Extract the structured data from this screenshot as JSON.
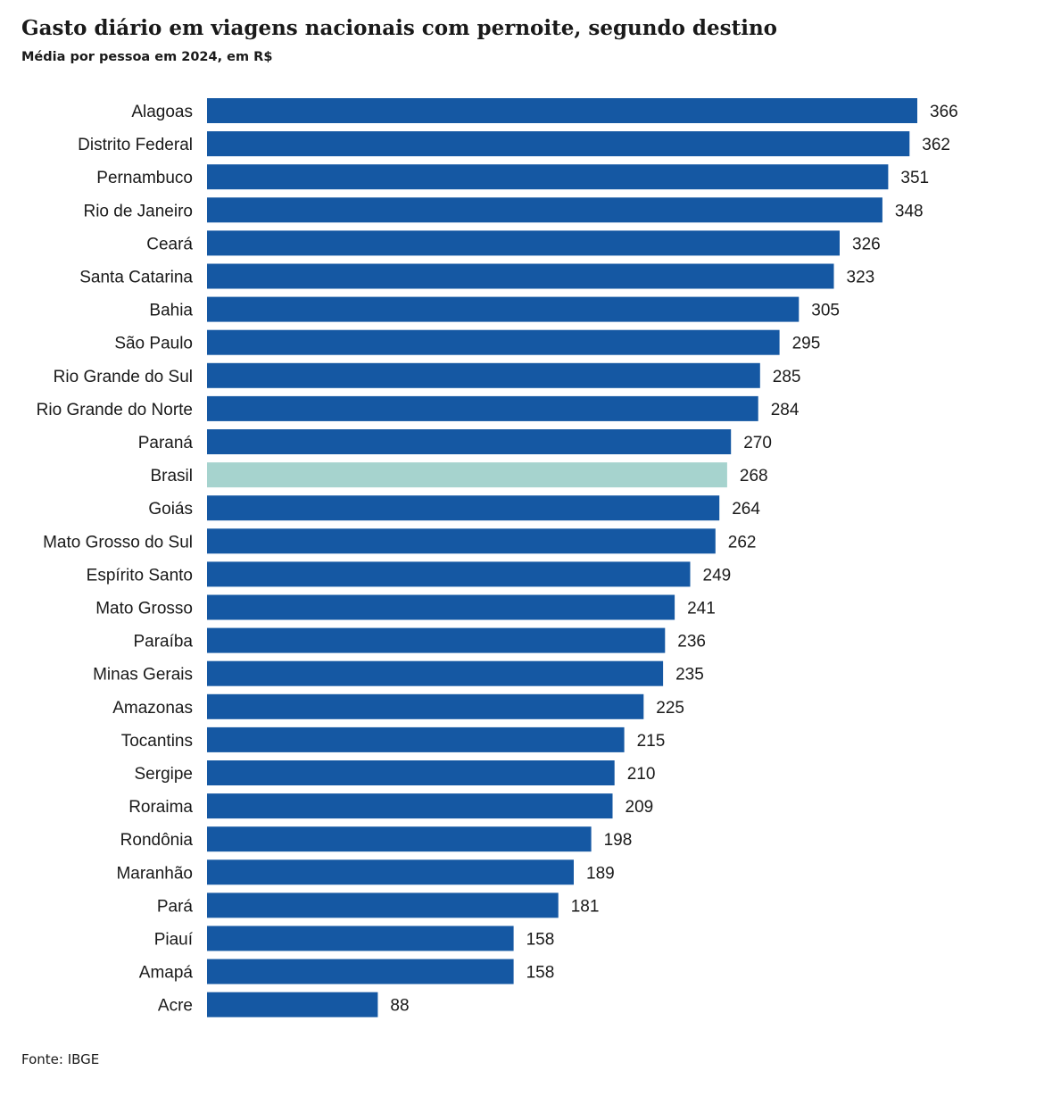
{
  "header": {
    "title": "Gasto diário em viagens nacionais com pernoite, segundo destino",
    "subtitle": "Média por pessoa em 2024, em R$"
  },
  "footer": {
    "source": "Fonte: IBGE"
  },
  "colors": {
    "bar": "#1558a3",
    "highlight": "#a6d3ce",
    "text": "#1a1a1a"
  },
  "chart_data": {
    "type": "bar",
    "orientation": "horizontal",
    "highlight_category": "Brasil",
    "grid": false,
    "legend": "none",
    "xlim": [
      0,
      366
    ],
    "categories": [
      "Alagoas",
      "Distrito Federal",
      "Pernambuco",
      "Rio de Janeiro",
      "Ceará",
      "Santa Catarina",
      "Bahia",
      "São Paulo",
      "Rio Grande do Sul",
      "Rio Grande do Norte",
      "Paraná",
      "Brasil",
      "Goiás",
      "Mato Grosso do Sul",
      "Espírito Santo",
      "Mato Grosso",
      "Paraíba",
      "Minas Gerais",
      "Amazonas",
      "Tocantins",
      "Sergipe",
      "Roraima",
      "Rondônia",
      "Maranhão",
      "Pará",
      "Piauí",
      "Amapá",
      "Acre"
    ],
    "values": [
      366,
      362,
      351,
      348,
      326,
      323,
      305,
      295,
      285,
      284,
      270,
      268,
      264,
      262,
      249,
      241,
      236,
      235,
      225,
      215,
      210,
      209,
      198,
      189,
      181,
      158,
      158,
      88
    ]
  }
}
